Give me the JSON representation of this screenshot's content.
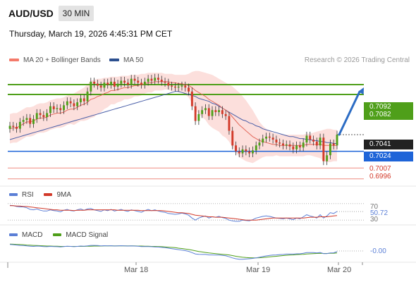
{
  "header": {
    "symbol": "AUD/USD",
    "timeframe": "30 MIN",
    "datetime": "Thursday, March 19, 2026 4:45:31 PM CET",
    "research": "Research © 2026 Trading Central"
  },
  "legend": {
    "ma20": {
      "label": "MA 20 + Bollinger Bands",
      "color": "#f47a6a"
    },
    "ma50": {
      "label": "MA 50",
      "color": "#2c4f8f"
    }
  },
  "chart_data": [
    {
      "type": "candlestick",
      "x_labels": [
        "Mar 18",
        "Mar 19",
        "Mar 20"
      ],
      "ylim": [
        0.699,
        0.711
      ],
      "levels": {
        "resistance": [
          0.7092,
          0.7082
        ],
        "current": 0.7041,
        "pivot": 0.7024,
        "support": [
          0.7007,
          0.6996
        ]
      },
      "close": [
        0.705,
        0.7049,
        0.7047,
        0.7054,
        0.7056,
        0.7058,
        0.7052,
        0.7057,
        0.7063,
        0.7061,
        0.7059,
        0.7063,
        0.707,
        0.7067,
        0.7068,
        0.7066,
        0.7071,
        0.7075,
        0.7073,
        0.707,
        0.7074,
        0.7078,
        0.7075,
        0.7085,
        0.7095,
        0.7093,
        0.7091,
        0.7089,
        0.7094,
        0.7092,
        0.7095,
        0.709,
        0.7093,
        0.7096,
        0.7094,
        0.7092,
        0.7098,
        0.7096,
        0.7094,
        0.7092,
        0.7095,
        0.7098,
        0.7096,
        0.7099,
        0.7097,
        0.7095,
        0.7094,
        0.7091,
        0.709,
        0.7089,
        0.709,
        0.7091,
        0.7089,
        0.7085,
        0.707,
        0.7055,
        0.7062,
        0.7066,
        0.7068,
        0.706,
        0.7066,
        0.7064,
        0.7066,
        0.7062,
        0.706,
        0.7045,
        0.703,
        0.7024,
        0.7022,
        0.7026,
        0.7024,
        0.7022,
        0.7025,
        0.703,
        0.7033,
        0.7037,
        0.7039,
        0.7038,
        0.7036,
        0.7033,
        0.7032,
        0.703,
        0.7031,
        0.7029,
        0.7026,
        0.703,
        0.7028,
        0.7033,
        0.704,
        0.7036,
        0.7034,
        0.703,
        0.7038,
        0.7014,
        0.702,
        0.7032,
        0.703,
        0.7041
      ],
      "ma20": [
        0.7047,
        0.7048,
        0.7048,
        0.705,
        0.7052,
        0.7054,
        0.7054,
        0.7055,
        0.7057,
        0.7058,
        0.7058,
        0.7059,
        0.7061,
        0.7062,
        0.7063,
        0.7063,
        0.7064,
        0.7066,
        0.7067,
        0.7067,
        0.7069,
        0.7071,
        0.7072,
        0.7074,
        0.7077,
        0.7078,
        0.708,
        0.7081,
        0.7083,
        0.7084,
        0.7086,
        0.7086,
        0.7087,
        0.7088,
        0.7089,
        0.7089,
        0.709,
        0.7091,
        0.7091,
        0.7092,
        0.7093,
        0.7094,
        0.7094,
        0.7095,
        0.7095,
        0.7095,
        0.7095,
        0.7095,
        0.7094,
        0.7094,
        0.7093,
        0.7093,
        0.7092,
        0.7091,
        0.7089,
        0.7086,
        0.7084,
        0.7082,
        0.708,
        0.7077,
        0.7075,
        0.7073,
        0.7071,
        0.7068,
        0.7066,
        0.7063,
        0.7059,
        0.7055,
        0.7051,
        0.7048,
        0.7045,
        0.7042,
        0.7039,
        0.7037,
        0.7035,
        0.7034,
        0.7033,
        0.7032,
        0.7031,
        0.7031,
        0.703,
        0.703,
        0.703,
        0.703,
        0.703,
        0.703,
        0.703,
        0.703,
        0.7031,
        0.7031,
        0.7031,
        0.7031,
        0.7031,
        0.703,
        0.703,
        0.703,
        0.703,
        0.703
      ],
      "bb_upper": [
        0.7062,
        0.7063,
        0.7063,
        0.7065,
        0.7067,
        0.7069,
        0.7069,
        0.707,
        0.7072,
        0.7073,
        0.7073,
        0.7074,
        0.7076,
        0.7077,
        0.7078,
        0.7078,
        0.7079,
        0.7081,
        0.7082,
        0.7083,
        0.7085,
        0.7087,
        0.7089,
        0.7092,
        0.7096,
        0.7097,
        0.7098,
        0.7098,
        0.7099,
        0.7099,
        0.71,
        0.71,
        0.71,
        0.7101,
        0.7101,
        0.7101,
        0.7102,
        0.7102,
        0.7102,
        0.7103,
        0.7103,
        0.7104,
        0.7104,
        0.7104,
        0.7104,
        0.7104,
        0.7103,
        0.7103,
        0.7103,
        0.7102,
        0.7102,
        0.7102,
        0.7102,
        0.7103,
        0.7105,
        0.7106,
        0.7106,
        0.7105,
        0.7104,
        0.7103,
        0.7102,
        0.71,
        0.7098,
        0.7096,
        0.7094,
        0.7092,
        0.709,
        0.7087,
        0.7084,
        0.708,
        0.7076,
        0.7071,
        0.7066,
        0.706,
        0.7054,
        0.705,
        0.7047,
        0.7045,
        0.7043,
        0.7042,
        0.7041,
        0.7041,
        0.7041,
        0.7041,
        0.7041,
        0.7041,
        0.7041,
        0.7041,
        0.7042,
        0.7042,
        0.7043,
        0.7044,
        0.7045,
        0.7046,
        0.7047,
        0.7047,
        0.7046,
        0.7046
      ],
      "bb_lower": [
        0.7032,
        0.7033,
        0.7033,
        0.7035,
        0.7037,
        0.7039,
        0.7039,
        0.704,
        0.7042,
        0.7043,
        0.7043,
        0.7044,
        0.7046,
        0.7047,
        0.7048,
        0.7048,
        0.7049,
        0.7051,
        0.7052,
        0.7051,
        0.7053,
        0.7055,
        0.7055,
        0.7056,
        0.7058,
        0.7059,
        0.7062,
        0.7064,
        0.7067,
        0.7069,
        0.7072,
        0.7072,
        0.7074,
        0.7075,
        0.7077,
        0.7077,
        0.7078,
        0.708,
        0.708,
        0.7081,
        0.7083,
        0.7084,
        0.7084,
        0.7086,
        0.7086,
        0.7086,
        0.7087,
        0.7087,
        0.7085,
        0.7086,
        0.7084,
        0.7084,
        0.7082,
        0.7079,
        0.7073,
        0.7066,
        0.7062,
        0.7059,
        0.7056,
        0.7051,
        0.7048,
        0.7046,
        0.7044,
        0.704,
        0.7038,
        0.7034,
        0.7028,
        0.7023,
        0.7018,
        0.7016,
        0.7014,
        0.7013,
        0.7012,
        0.7014,
        0.7016,
        0.7018,
        0.7019,
        0.7019,
        0.7019,
        0.702,
        0.7019,
        0.7019,
        0.7019,
        0.7019,
        0.7019,
        0.7019,
        0.7019,
        0.7019,
        0.702,
        0.702,
        0.7019,
        0.7018,
        0.7017,
        0.7014,
        0.7013,
        0.7013,
        0.7014,
        0.7014
      ],
      "ma50": [
        0.7036,
        0.7037,
        0.7038,
        0.7039,
        0.704,
        0.7041,
        0.7042,
        0.7043,
        0.7044,
        0.7045,
        0.7046,
        0.7047,
        0.7048,
        0.7049,
        0.705,
        0.7051,
        0.7052,
        0.7053,
        0.7054,
        0.7055,
        0.7056,
        0.7057,
        0.7058,
        0.7059,
        0.706,
        0.7061,
        0.7062,
        0.7063,
        0.7064,
        0.7065,
        0.7066,
        0.7067,
        0.7068,
        0.7069,
        0.707,
        0.7071,
        0.7072,
        0.7073,
        0.7074,
        0.7075,
        0.7076,
        0.7077,
        0.7078,
        0.7079,
        0.708,
        0.7081,
        0.7082,
        0.7083,
        0.7084,
        0.7085,
        0.7085,
        0.7084,
        0.7083,
        0.7082,
        0.7081,
        0.708,
        0.7078,
        0.7077,
        0.7076,
        0.7075,
        0.7073,
        0.7072,
        0.707,
        0.7068,
        0.7066,
        0.7064,
        0.7062,
        0.706,
        0.7058,
        0.7056,
        0.7055,
        0.7053,
        0.7052,
        0.705,
        0.7049,
        0.7047,
        0.7046,
        0.7045,
        0.7044,
        0.7043,
        0.7042,
        0.7041,
        0.704,
        0.7039,
        0.7039,
        0.7038,
        0.7037,
        0.7037,
        0.7036,
        0.7036,
        0.7035,
        0.7035,
        0.7034,
        0.7034,
        0.7033,
        0.7033,
        0.7032,
        0.7032
      ]
    },
    {
      "type": "line",
      "name": "rsi-panel",
      "legend": [
        "RSI",
        "9MA"
      ],
      "ticks": [
        "70",
        "30"
      ],
      "value_label": "50.72",
      "ylim": [
        20,
        80
      ],
      "rsi": [
        66,
        65,
        63,
        62,
        62,
        60,
        56,
        55,
        57,
        54,
        52,
        52,
        55,
        53,
        52,
        50,
        54,
        56,
        53,
        52,
        55,
        57,
        54,
        57,
        58,
        55,
        53,
        51,
        55,
        53,
        56,
        52,
        54,
        56,
        53,
        51,
        55,
        53,
        51,
        49,
        53,
        56,
        53,
        55,
        52,
        50,
        49,
        46,
        45,
        44,
        45,
        47,
        45,
        42,
        35,
        30,
        35,
        38,
        40,
        35,
        38,
        37,
        39,
        36,
        34,
        30,
        28,
        27,
        27,
        30,
        29,
        28,
        31,
        35,
        37,
        39,
        40,
        39,
        37,
        35,
        34,
        33,
        35,
        33,
        31,
        35,
        33,
        38,
        43,
        40,
        38,
        35,
        43,
        35,
        40,
        48,
        46,
        51
      ],
      "ma9": [
        65,
        65,
        64,
        64,
        63,
        63,
        62,
        61,
        60,
        59,
        58,
        57,
        56,
        55,
        55,
        54,
        54,
        54,
        54,
        53,
        54,
        54,
        54,
        55,
        55,
        55,
        55,
        55,
        55,
        55,
        55,
        55,
        54,
        54,
        54,
        54,
        54,
        54,
        54,
        53,
        53,
        53,
        53,
        53,
        53,
        53,
        52,
        51,
        50,
        49,
        48,
        48,
        47,
        46,
        44,
        42,
        41,
        40,
        39,
        38,
        38,
        37,
        37,
        37,
        36,
        35,
        34,
        33,
        32,
        31,
        30,
        30,
        30,
        30,
        31,
        32,
        33,
        34,
        35,
        35,
        35,
        35,
        35,
        35,
        35,
        35,
        35,
        35,
        36,
        37,
        37,
        37,
        38,
        38,
        38,
        39,
        40,
        41
      ]
    },
    {
      "type": "line",
      "name": "macd-panel",
      "legend": [
        "MACD",
        "MACD Signal"
      ],
      "value_label": "-0.00",
      "macd": [
        0.0004,
        0.00038,
        0.00036,
        0.00034,
        0.00033,
        0.00031,
        0.00029,
        0.00028,
        0.0003,
        0.00029,
        0.00027,
        0.00026,
        0.00028,
        0.00027,
        0.00026,
        0.00025,
        0.00027,
        0.00029,
        0.00028,
        0.00026,
        0.00028,
        0.0003,
        0.00029,
        0.00031,
        0.00034,
        0.00034,
        0.00033,
        0.00031,
        0.00032,
        0.00031,
        0.00032,
        0.0003,
        0.00031,
        0.00032,
        0.00031,
        0.0003,
        0.00031,
        0.0003,
        0.00029,
        0.00027,
        0.00027,
        0.00027,
        0.00026,
        0.00025,
        0.00024,
        0.00022,
        0.0002,
        0.00017,
        0.00014,
        0.00011,
        8e-05,
        5e-05,
        2e-05,
        -2e-05,
        -0.0001,
        -0.00018,
        -0.0002,
        -0.00021,
        -0.00021,
        -0.00024,
        -0.00024,
        -0.00025,
        -0.00025,
        -0.00027,
        -0.00029,
        -0.00035,
        -0.00042,
        -0.00047,
        -0.0005,
        -0.0005,
        -0.00049,
        -0.00047,
        -0.00045,
        -0.00042,
        -0.00038,
        -0.00034,
        -0.0003,
        -0.00027,
        -0.00025,
        -0.00024,
        -0.00022,
        -0.00021,
        -0.00019,
        -0.00019,
        -0.00019,
        -0.00017,
        -0.00017,
        -0.00014,
        -0.0001,
        -0.0001,
        -0.0001,
        -0.00012,
        -9e-05,
        -0.00016,
        -0.00016,
        -0.00012,
        -0.00011,
        -4e-05
      ],
      "signal": [
        0.00042,
        0.00041,
        0.0004,
        0.00039,
        0.00038,
        0.00036,
        0.00035,
        0.00034,
        0.00033,
        0.00032,
        0.00031,
        0.0003,
        0.0003,
        0.00029,
        0.00029,
        0.00028,
        0.00028,
        0.00028,
        0.00028,
        0.00028,
        0.00028,
        0.00028,
        0.00028,
        0.00029,
        0.00029,
        0.0003,
        0.0003,
        0.0003,
        0.00031,
        0.00031,
        0.00031,
        0.00031,
        0.00031,
        0.00031,
        0.00031,
        0.00031,
        0.00031,
        0.00031,
        0.0003,
        0.0003,
        0.00029,
        0.00029,
        0.00028,
        0.00028,
        0.00027,
        0.00026,
        0.00025,
        0.00023,
        0.00022,
        0.0002,
        0.00017,
        0.00015,
        0.00012,
        9e-05,
        5e-05,
        1e-05,
        -3e-05,
        -6e-05,
        -9e-05,
        -0.00012,
        -0.00014,
        -0.00016,
        -0.00018,
        -0.0002,
        -0.00022,
        -0.00024,
        -0.00028,
        -0.00032,
        -0.00035,
        -0.00038,
        -0.0004,
        -0.00041,
        -0.00042,
        -0.00042,
        -0.00041,
        -0.0004,
        -0.00038,
        -0.00036,
        -0.00034,
        -0.00032,
        -0.0003,
        -0.00028,
        -0.00026,
        -0.00025,
        -0.00024,
        -0.00022,
        -0.00021,
        -0.0002,
        -0.00018,
        -0.00017,
        -0.00016,
        -0.00015,
        -0.00014,
        -0.00015,
        -0.00015,
        -0.00014,
        -0.00014,
        -0.00012
      ]
    }
  ],
  "colors": {
    "bullish": "#4f9f1a",
    "bearish": "#d23a2a",
    "resistance": "#4f9f1a",
    "pivot": "#1e64d8",
    "support": "#f2a39a",
    "arrow": "#2c6cc4",
    "band": "#fbd9d6",
    "rsi": "#5b7fd6",
    "ma9": "#d23a2a",
    "macd": "#5b7fd6",
    "signal": "#4f9f1a"
  },
  "icons": {
    "arrow": "trend-arrow-up-icon"
  }
}
